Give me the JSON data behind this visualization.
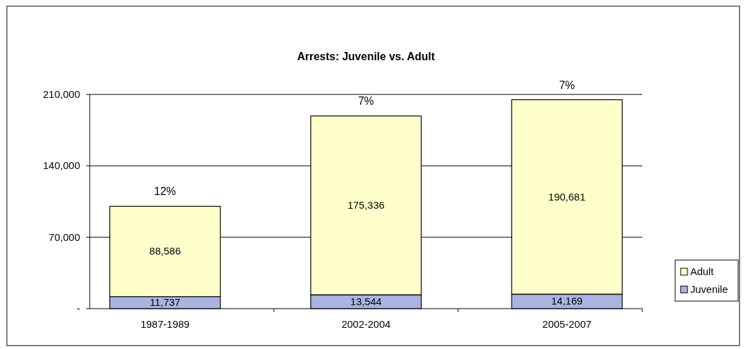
{
  "chart_data": {
    "type": "bar",
    "title": "Arrests: Juvenile vs. Adult",
    "stacked": true,
    "categories": [
      "1987-1989",
      "2002-2004",
      "2005-2007"
    ],
    "series": [
      {
        "name": "Juvenile",
        "color": "#aab4e0",
        "values": [
          11737,
          13544,
          14169
        ],
        "value_labels": [
          "11,737",
          "13,544",
          "14,169"
        ]
      },
      {
        "name": "Adult",
        "color": "#ffffcc",
        "values": [
          88586,
          175336,
          190681
        ],
        "value_labels": [
          "88,586",
          "175,336",
          "190,681"
        ]
      }
    ],
    "ylim": [
      0,
      210000
    ],
    "yticks": [
      {
        "value": 0,
        "label": "-"
      },
      {
        "value": 70000,
        "label": "70,000"
      },
      {
        "value": 140000,
        "label": "140,000"
      },
      {
        "value": 210000,
        "label": "210,000"
      }
    ],
    "grid": "y",
    "legend": "right",
    "annotations": [
      {
        "text": "12%",
        "x": "1987-1989",
        "y": 100323
      },
      {
        "text": "7%",
        "x": "2002-2004",
        "y": 188880
      },
      {
        "text": "7%",
        "x": "2005-2007",
        "y": 204850
      }
    ]
  }
}
